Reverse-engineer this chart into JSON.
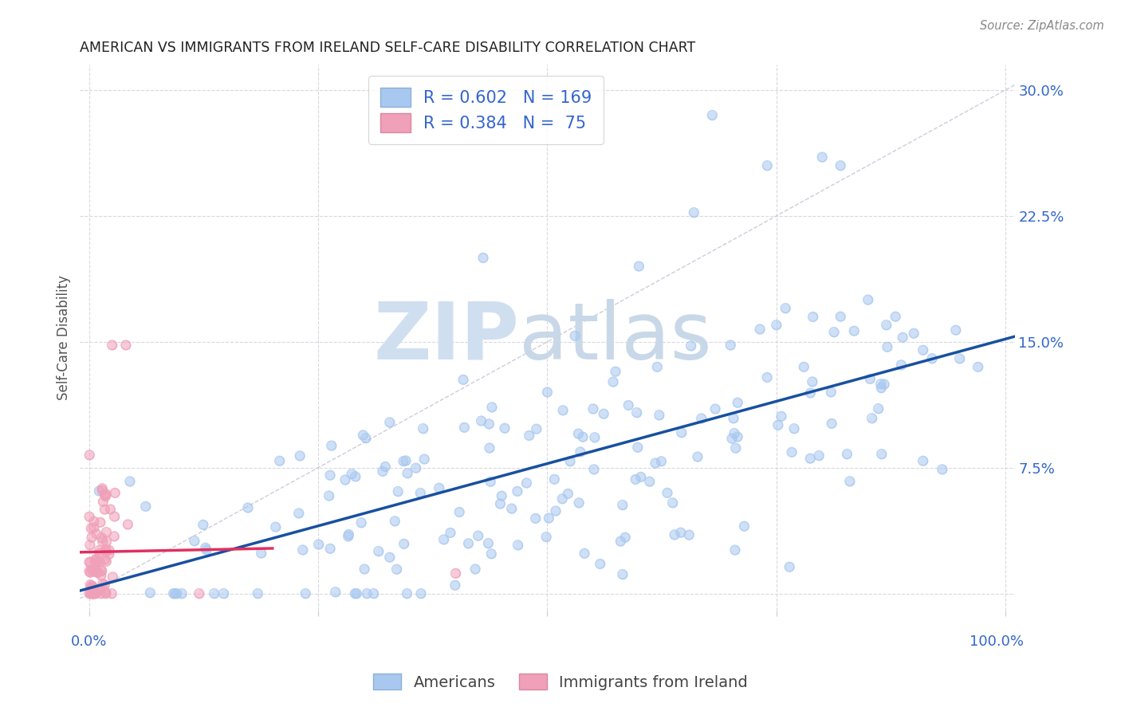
{
  "title": "AMERICAN VS IMMIGRANTS FROM IRELAND SELF-CARE DISABILITY CORRELATION CHART",
  "source": "Source: ZipAtlas.com",
  "ylabel": "Self-Care Disability",
  "ytick_values": [
    0.0,
    0.075,
    0.15,
    0.225,
    0.3
  ],
  "ytick_labels": [
    "",
    "7.5%",
    "15.0%",
    "22.5%",
    "30.0%"
  ],
  "xlim": [
    -0.01,
    1.01
  ],
  "ylim": [
    -0.01,
    0.315
  ],
  "americans_R": 0.602,
  "americans_N": 169,
  "ireland_R": 0.384,
  "ireland_N": 75,
  "dot_color_americans": "#a8c8f0",
  "dot_color_ireland": "#f0a0b8",
  "line_color_americans": "#1850a0",
  "line_color_ireland": "#e03060",
  "diag_color": "#c8c8d8",
  "grid_color": "#d8d8e0",
  "background_color": "#ffffff",
  "legend_label_americans": "Americans",
  "legend_label_ireland": "Immigrants from Ireland",
  "text_color_blue": "#3366cc",
  "watermark_zip_color": "#d0dff0",
  "watermark_atlas_color": "#c8d8e8"
}
